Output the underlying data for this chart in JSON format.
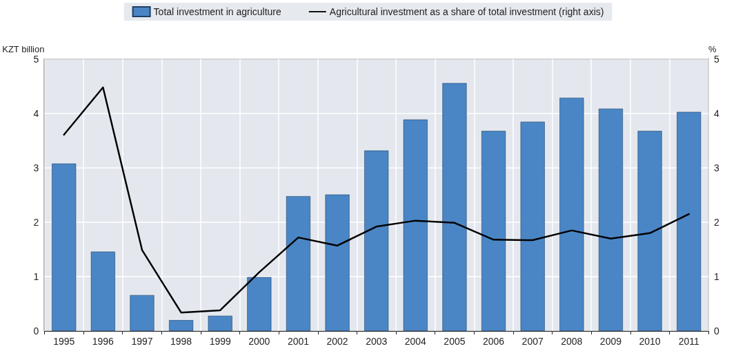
{
  "chart_data": {
    "type": "bar",
    "ylabel": "KZT billion",
    "y2label": "%",
    "categories": [
      "1995",
      "1996",
      "1997",
      "1998",
      "1999",
      "2000",
      "2001",
      "2002",
      "2003",
      "2004",
      "2005",
      "2006",
      "2007",
      "2008",
      "2009",
      "2010",
      "2011"
    ],
    "series": [
      {
        "name": "Total investment in agriculture",
        "color": "#4a86c5",
        "values": [
          3.08,
          1.46,
          0.66,
          0.2,
          0.28,
          0.99,
          2.48,
          2.51,
          3.32,
          3.89,
          4.56,
          3.68,
          3.85,
          4.29,
          4.09,
          3.68,
          4.03
        ]
      },
      {
        "name": "Agricultural investment as a share of total investment (right axis)",
        "type": "line",
        "axis": "y2",
        "color": "#000000",
        "values": [
          3.61,
          4.48,
          1.49,
          0.34,
          0.38,
          1.08,
          1.72,
          1.57,
          1.92,
          2.03,
          1.99,
          1.68,
          1.67,
          1.85,
          1.7,
          1.8,
          2.15
        ]
      }
    ],
    "ylim": [
      0,
      5
    ],
    "yticks": [
      0,
      1,
      2,
      3,
      4,
      5
    ],
    "y2lim": [
      0,
      5
    ],
    "y2ticks": [
      0,
      1,
      2,
      3,
      4,
      5
    ],
    "grid": true,
    "legend": "top",
    "marker": "none",
    "line_style": "solid"
  }
}
